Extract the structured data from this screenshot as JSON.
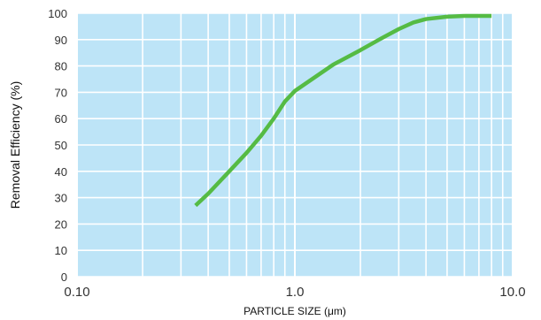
{
  "chart_data": {
    "type": "line",
    "title": "",
    "xlabel": "PARTICLE SIZE (μm)",
    "ylabel": "Removal Efficiency (%)",
    "x_scale": "log",
    "xlim": [
      0.1,
      10.0
    ],
    "ylim": [
      0,
      100
    ],
    "x_ticks": [
      {
        "value": 0.1,
        "label": "0.10"
      },
      {
        "value": 1.0,
        "label": "1.0"
      },
      {
        "value": 10.0,
        "label": "10.0"
      }
    ],
    "y_ticks": [
      0,
      10,
      20,
      30,
      40,
      50,
      60,
      70,
      80,
      90,
      100
    ],
    "y_tick_labels": [
      "0",
      "10",
      "20",
      "30",
      "40",
      "50",
      "60",
      "70",
      "80",
      "90",
      "100"
    ],
    "grid": true,
    "series": [
      {
        "color": "#55bb44",
        "points": [
          [
            0.35,
            27
          ],
          [
            0.4,
            31.5
          ],
          [
            0.5,
            40
          ],
          [
            0.6,
            47
          ],
          [
            0.7,
            53.5
          ],
          [
            0.8,
            60
          ],
          [
            0.9,
            66.5
          ],
          [
            1.0,
            70.5
          ],
          [
            1.2,
            75
          ],
          [
            1.5,
            80.5
          ],
          [
            2.0,
            86
          ],
          [
            2.5,
            90.5
          ],
          [
            3.0,
            94
          ],
          [
            3.5,
            96.5
          ],
          [
            4.0,
            97.8
          ],
          [
            5.0,
            98.7
          ],
          [
            6.0,
            99
          ],
          [
            8.0,
            99
          ]
        ]
      }
    ]
  },
  "colors": {
    "plot_background": "#bde4f7",
    "grid": "#ffffff",
    "line": "#55bb44"
  }
}
